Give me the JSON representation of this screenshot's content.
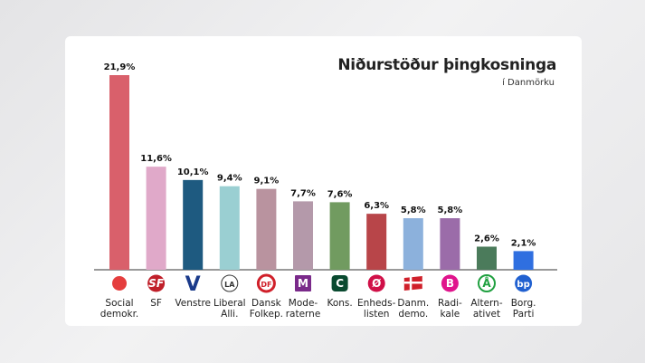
{
  "chart_data": {
    "type": "bar",
    "title": "Niðurstöður þingkosninga",
    "subtitle": "í Danmörku",
    "xlabel": "",
    "ylabel": "",
    "ylim": [
      0,
      22
    ],
    "grid": false,
    "categories": [
      [
        "Social",
        "demokr."
      ],
      [
        "SF"
      ],
      [
        "Venstre"
      ],
      [
        "Liberal",
        "Alli."
      ],
      [
        "Dansk",
        "Folkep."
      ],
      [
        "Mode-",
        "raterne"
      ],
      [
        "Kons."
      ],
      [
        "Enheds-",
        "listen"
      ],
      [
        "Danm.",
        "demo."
      ],
      [
        "Radi-",
        "kale"
      ],
      [
        "Altern-",
        "ativet"
      ],
      [
        "Borg.",
        "Parti"
      ]
    ],
    "values": [
      21.9,
      11.6,
      10.1,
      9.4,
      9.1,
      7.7,
      7.6,
      6.3,
      5.8,
      5.8,
      2.6,
      2.1
    ],
    "value_labels": [
      "21,9%",
      "11,6%",
      "10,1%",
      "9,4%",
      "9,1%",
      "7,7%",
      "7,6%",
      "6,3%",
      "5,8%",
      "5,8%",
      "2,6%",
      "2,1%"
    ],
    "colors": [
      "#d9606b",
      "#e0a9c9",
      "#1e5a80",
      "#9acfd2",
      "#b9939f",
      "#b499aa",
      "#719b60",
      "#b84549",
      "#8cb1dc",
      "#9b6ca9",
      "#4b7b5b",
      "#2f6fe0"
    ],
    "icons": [
      {
        "name": "social-demokratiet-rose-icon",
        "text": "",
        "color": "#e53e3e"
      },
      {
        "name": "sf-logo-icon",
        "text": "SF",
        "color": "#c0202a"
      },
      {
        "name": "venstre-logo-icon",
        "text": "V",
        "color": "#1a3a8a"
      },
      {
        "name": "liberal-alliance-logo-icon",
        "text": "LA",
        "color": "#333333"
      },
      {
        "name": "dansk-folkeparti-logo-icon",
        "text": "DF",
        "color": "#d0202a"
      },
      {
        "name": "moderaterne-logo-icon",
        "text": "M",
        "color": "#7a2a8a"
      },
      {
        "name": "konservative-logo-icon",
        "text": "C",
        "color": "#0a4a30"
      },
      {
        "name": "enhedslisten-logo-icon",
        "text": "Ø",
        "color": "#d01048"
      },
      {
        "name": "danmarksdemokraterne-flag-icon",
        "text": "",
        "color": "#d0202a"
      },
      {
        "name": "radikale-logo-icon",
        "text": "B",
        "color": "#e0148c"
      },
      {
        "name": "alternativet-logo-icon",
        "text": "Å",
        "color": "#20a040"
      },
      {
        "name": "borgernes-parti-logo-icon",
        "text": "bp",
        "color": "#2060d0"
      }
    ]
  }
}
